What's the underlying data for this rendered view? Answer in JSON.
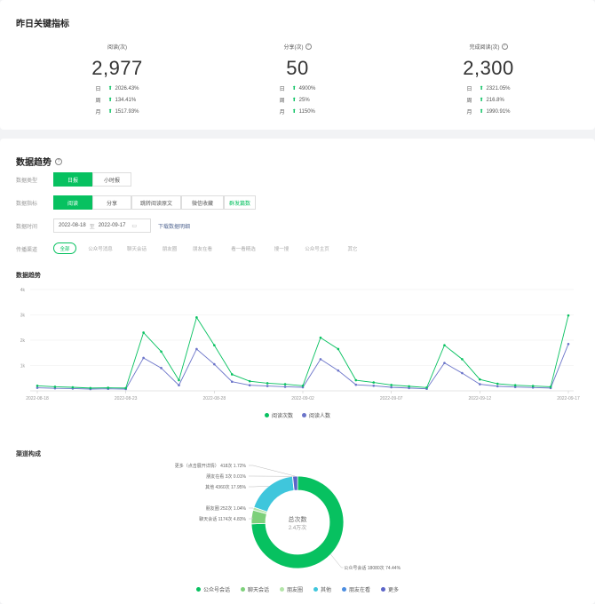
{
  "kpi_section": {
    "title": "昨日关键指标",
    "items": [
      {
        "label": "阅读(次)",
        "value": "2,977",
        "help": false,
        "rows": [
          {
            "k": "日",
            "v": "2026.43%"
          },
          {
            "k": "周",
            "v": "134.41%"
          },
          {
            "k": "月",
            "v": "1517.93%"
          }
        ]
      },
      {
        "label": "分享(次)",
        "value": "50",
        "help": true,
        "rows": [
          {
            "k": "日",
            "v": "4900%"
          },
          {
            "k": "周",
            "v": "25%"
          },
          {
            "k": "月",
            "v": "1150%"
          }
        ]
      },
      {
        "label": "完成阅读(次)",
        "value": "2,300",
        "help": true,
        "rows": [
          {
            "k": "日",
            "v": "2321.05%"
          },
          {
            "k": "周",
            "v": "216.8%"
          },
          {
            "k": "月",
            "v": "1990.91%"
          }
        ]
      }
    ]
  },
  "trend_section": {
    "title": "数据趋势",
    "type_label": "数据类型",
    "type_tabs": [
      "日报",
      "小时报"
    ],
    "metric_label": "数据指标",
    "metric_tabs": [
      "阅读",
      "分享",
      "跳转阅读原文",
      "微信收藏",
      "群发篇数"
    ],
    "time_label": "数据时间",
    "date_start": "2022-08-18",
    "date_sep": "至",
    "date_end": "2022-09-17",
    "calendar_icon": "▭",
    "download": "下载数据明细",
    "channel_label": "传播渠道",
    "channels": [
      "全部",
      "公众号消息",
      "聊天会话",
      "朋友圈",
      "朋友在看",
      "看一看精选",
      "搜一搜",
      "公众号主页",
      "其它"
    ]
  },
  "chart_title": "数据趋势",
  "chart_data": {
    "type": "line",
    "x": [
      "2022-08-18",
      "2022-08-19",
      "2022-08-20",
      "2022-08-21",
      "2022-08-22",
      "2022-08-23",
      "2022-08-24",
      "2022-08-25",
      "2022-08-26",
      "2022-08-27",
      "2022-08-28",
      "2022-08-29",
      "2022-08-30",
      "2022-08-31",
      "2022-09-01",
      "2022-09-02",
      "2022-09-03",
      "2022-09-04",
      "2022-09-05",
      "2022-09-06",
      "2022-09-07",
      "2022-09-08",
      "2022-09-09",
      "2022-09-10",
      "2022-09-11",
      "2022-09-12",
      "2022-09-13",
      "2022-09-14",
      "2022-09-15",
      "2022-09-16",
      "2022-09-17"
    ],
    "x_tick_labels": [
      "2022-08-18",
      "2022-08-23",
      "2022-08-28",
      "2022-09-02",
      "2022-09-07",
      "2022-09-12",
      "2022-09-17"
    ],
    "y_ticks": [
      "1k",
      "2k",
      "3k",
      "4k"
    ],
    "ylim": [
      0,
      4000
    ],
    "series": [
      {
        "name": "阅读次数",
        "color": "#07c160",
        "values": [
          200,
          160,
          140,
          110,
          120,
          110,
          2300,
          1550,
          420,
          2900,
          1800,
          650,
          380,
          300,
          260,
          200,
          2100,
          1650,
          420,
          330,
          230,
          180,
          130,
          1800,
          1250,
          450,
          280,
          220,
          190,
          160,
          2977
        ]
      },
      {
        "name": "阅读人数",
        "color": "#6b74c9",
        "values": [
          120,
          100,
          90,
          70,
          80,
          70,
          1300,
          900,
          220,
          1650,
          1050,
          360,
          220,
          190,
          160,
          140,
          1250,
          800,
          240,
          200,
          140,
          110,
          80,
          1100,
          700,
          260,
          180,
          150,
          130,
          110,
          1850
        ]
      }
    ],
    "legend_position": "bottom"
  },
  "pie_title": "渠道构成",
  "pie_data": {
    "type": "pie",
    "center_label": "总次数",
    "center_value": "2.4万次",
    "slices": [
      {
        "name": "公众号会话",
        "label": "公众号会话 18080次 74.44%",
        "value": 74.44,
        "color": "#07c160"
      },
      {
        "name": "聊天会话",
        "label": "聊天会话 1174次 4.83%",
        "value": 4.83,
        "color": "#7dd07a"
      },
      {
        "name": "朋友圈",
        "label": "朋友圈 252次 1.04%",
        "value": 1.04,
        "color": "#b3e5a8"
      },
      {
        "name": "其他",
        "label": "其他 4360次 17.95%",
        "value": 17.95,
        "color": "#3fc6dc"
      },
      {
        "name": "朋友在看",
        "label": "朋友在看 3次 0.01%",
        "value": 0.01,
        "color": "#4b8de0"
      },
      {
        "name": "更多",
        "label": "更多（点击展开详情） 418次 1.72%",
        "value": 1.72,
        "color": "#5b64c8"
      }
    ]
  }
}
